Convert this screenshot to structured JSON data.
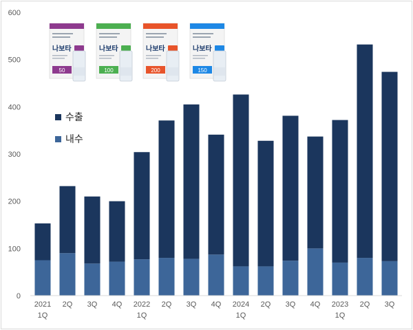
{
  "chart_data": {
    "type": "bar",
    "stacked": true,
    "categories": [
      "2021\n1Q",
      "2Q",
      "3Q",
      "4Q",
      "2022\n1Q",
      "2Q",
      "3Q",
      "4Q",
      "2024\n1Q",
      "2Q",
      "3Q",
      "4Q",
      "2023\n1Q",
      "2Q",
      "3Q"
    ],
    "series": [
      {
        "name": "내수",
        "color": "#3d6699",
        "values": [
          75,
          90,
          68,
          72,
          77,
          80,
          78,
          87,
          62,
          62,
          74,
          100,
          70,
          80,
          73
        ]
      },
      {
        "name": "수출",
        "color": "#1b365d",
        "values": [
          78,
          142,
          142,
          128,
          227,
          291,
          327,
          254,
          364,
          266,
          307,
          237,
          302,
          452,
          401
        ]
      }
    ],
    "ylim": [
      0,
      600
    ],
    "yticks": [
      0,
      100,
      200,
      300,
      400,
      500,
      600
    ],
    "legend": "left",
    "grid": false
  },
  "products": [
    {
      "label": "50",
      "brand": "나보타",
      "accent": "#8e3a8e"
    },
    {
      "label": "100",
      "brand": "나보타",
      "accent": "#4caf50"
    },
    {
      "label": "200",
      "brand": "나보타",
      "accent": "#e8542a"
    },
    {
      "label": "150",
      "brand": "나보타",
      "accent": "#1e88e5"
    }
  ]
}
